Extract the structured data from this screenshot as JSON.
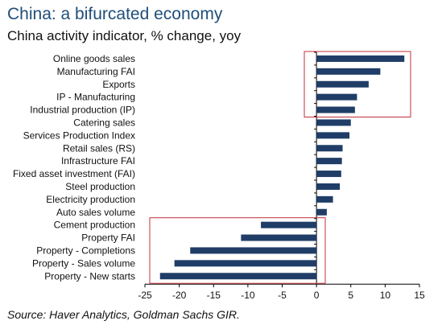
{
  "title": "China: a bifurcated economy",
  "subtitle": "China activity indicator, % change, yoy",
  "source": "Source: Haver Analytics, Goldman Sachs GIR.",
  "colors": {
    "bar": "#1f3d66",
    "highlight_box": "#c0303a",
    "title": "#1f4e79"
  },
  "chart_data": {
    "type": "bar",
    "orientation": "horizontal",
    "categories": [
      "Online goods sales",
      "Manufacturing FAI",
      "Exports",
      "IP - Manufacturing",
      "Industrial production (IP)",
      "Catering sales",
      "Services Production Index",
      "Retail sales (RS)",
      "Infrastructure FAI",
      "Fixed asset investment (FAI)",
      "Steel production",
      "Electricity production",
      "Auto sales volume",
      "Cement production",
      "Property FAI",
      "Property - Completions",
      "Property - Sales volume",
      "Property - New starts"
    ],
    "values": [
      12.8,
      9.3,
      7.6,
      5.9,
      5.6,
      5.0,
      4.8,
      3.8,
      3.7,
      3.6,
      3.4,
      2.4,
      1.5,
      -8.1,
      -11.0,
      -18.4,
      -20.7,
      -22.8
    ],
    "xlim": [
      -25,
      15
    ],
    "xticks": [
      "-25",
      "-20",
      "-15",
      "-10",
      "-5",
      "0",
      "5",
      "10",
      "15"
    ],
    "highlight_groups": [
      "top-5",
      "bottom-5"
    ],
    "grid": false,
    "legend": "none"
  }
}
